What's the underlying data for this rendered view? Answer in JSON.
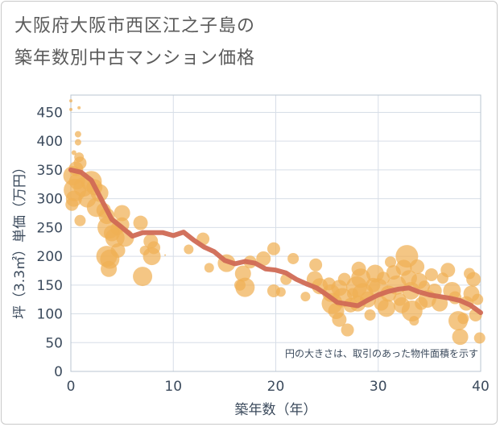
{
  "title_line1": "大阪府大阪市西区江之子島の",
  "title_line2": "築年数別中古マンション価格",
  "chart_data": {
    "type": "scatter",
    "xlabel": "築年数（年）",
    "ylabel": "坪（3.3㎡）単価（万円）",
    "xlim": [
      0,
      40
    ],
    "ylim": [
      0,
      480
    ],
    "xticks": [
      0,
      10,
      20,
      30,
      40
    ],
    "yticks": [
      0,
      50,
      100,
      150,
      200,
      250,
      300,
      350,
      400,
      450
    ],
    "grid": true,
    "annotation": "円の大きさは、取引のあった物件面積を示す",
    "colors": {
      "points": "#f0b055",
      "trend": "#d06a55",
      "grid": "#d7dee7",
      "plot_border": "#b8c4d0"
    },
    "points": [
      {
        "x": 0,
        "y": 470,
        "r": 2
      },
      {
        "x": 0,
        "y": 455,
        "r": 2
      },
      {
        "x": 0.8,
        "y": 458,
        "r": 2
      },
      {
        "x": 0.7,
        "y": 412,
        "r": 4
      },
      {
        "x": 0.7,
        "y": 398,
        "r": 4
      },
      {
        "x": 0.3,
        "y": 380,
        "r": 3
      },
      {
        "x": 0.8,
        "y": 372,
        "r": 6
      },
      {
        "x": 0.9,
        "y": 362,
        "r": 8
      },
      {
        "x": 0.5,
        "y": 352,
        "r": 9
      },
      {
        "x": 0.2,
        "y": 340,
        "r": 12
      },
      {
        "x": 0.6,
        "y": 330,
        "r": 10
      },
      {
        "x": 0.4,
        "y": 315,
        "r": 14
      },
      {
        "x": 0.3,
        "y": 300,
        "r": 10
      },
      {
        "x": 0.1,
        "y": 290,
        "r": 8
      },
      {
        "x": 0.9,
        "y": 262,
        "r": 7
      },
      {
        "x": 1.2,
        "y": 320,
        "r": 12
      },
      {
        "x": 1.6,
        "y": 300,
        "r": 11
      },
      {
        "x": 2,
        "y": 330,
        "r": 13
      },
      {
        "x": 2.3,
        "y": 320,
        "r": 10
      },
      {
        "x": 2.5,
        "y": 285,
        "r": 12
      },
      {
        "x": 2.8,
        "y": 310,
        "r": 11
      },
      {
        "x": 3.2,
        "y": 280,
        "r": 9
      },
      {
        "x": 3.5,
        "y": 270,
        "r": 10
      },
      {
        "x": 3.7,
        "y": 250,
        "r": 14
      },
      {
        "x": 3.5,
        "y": 200,
        "r": 13
      },
      {
        "x": 3.8,
        "y": 195,
        "r": 12
      },
      {
        "x": 3.7,
        "y": 178,
        "r": 10
      },
      {
        "x": 4,
        "y": 240,
        "r": 10
      },
      {
        "x": 4.3,
        "y": 232,
        "r": 12
      },
      {
        "x": 4.6,
        "y": 210,
        "r": 9
      },
      {
        "x": 4.5,
        "y": 248,
        "r": 8
      },
      {
        "x": 5,
        "y": 275,
        "r": 10
      },
      {
        "x": 5,
        "y": 255,
        "r": 9
      },
      {
        "x": 5.3,
        "y": 232,
        "r": 11
      },
      {
        "x": 6.8,
        "y": 258,
        "r": 9
      },
      {
        "x": 7,
        "y": 165,
        "r": 12
      },
      {
        "x": 7.2,
        "y": 210,
        "r": 6
      },
      {
        "x": 7.8,
        "y": 226,
        "r": 9
      },
      {
        "x": 7.9,
        "y": 200,
        "r": 11
      },
      {
        "x": 8.1,
        "y": 215,
        "r": 8
      },
      {
        "x": 9,
        "y": 240,
        "r": 1
      },
      {
        "x": 9.2,
        "y": 202,
        "r": 1
      },
      {
        "x": 11.5,
        "y": 212,
        "r": 6
      },
      {
        "x": 12.9,
        "y": 230,
        "r": 8
      },
      {
        "x": 13.5,
        "y": 180,
        "r": 6
      },
      {
        "x": 15.2,
        "y": 188,
        "r": 11
      },
      {
        "x": 16.5,
        "y": 150,
        "r": 7
      },
      {
        "x": 16.8,
        "y": 170,
        "r": 10
      },
      {
        "x": 17,
        "y": 146,
        "r": 12
      },
      {
        "x": 17.5,
        "y": 190,
        "r": 8
      },
      {
        "x": 18.8,
        "y": 196,
        "r": 9
      },
      {
        "x": 19.8,
        "y": 213,
        "r": 8
      },
      {
        "x": 19.8,
        "y": 140,
        "r": 8
      },
      {
        "x": 20.5,
        "y": 138,
        "r": 6
      },
      {
        "x": 21,
        "y": 160,
        "r": 7
      },
      {
        "x": 21.7,
        "y": 196,
        "r": 7
      },
      {
        "x": 22.9,
        "y": 130,
        "r": 6
      },
      {
        "x": 23.8,
        "y": 160,
        "r": 10
      },
      {
        "x": 23.9,
        "y": 185,
        "r": 8
      },
      {
        "x": 24.3,
        "y": 148,
        "r": 10
      },
      {
        "x": 25.2,
        "y": 152,
        "r": 8
      },
      {
        "x": 25.4,
        "y": 136,
        "r": 11
      },
      {
        "x": 25.5,
        "y": 118,
        "r": 13
      },
      {
        "x": 25.9,
        "y": 105,
        "r": 10
      },
      {
        "x": 26.2,
        "y": 90,
        "r": 9
      },
      {
        "x": 26.2,
        "y": 145,
        "r": 10
      },
      {
        "x": 26.5,
        "y": 128,
        "r": 12
      },
      {
        "x": 26.7,
        "y": 160,
        "r": 8
      },
      {
        "x": 27,
        "y": 72,
        "r": 8
      },
      {
        "x": 27.3,
        "y": 115,
        "r": 9
      },
      {
        "x": 27.5,
        "y": 135,
        "r": 7
      },
      {
        "x": 27.9,
        "y": 147,
        "r": 13
      },
      {
        "x": 28,
        "y": 118,
        "r": 10
      },
      {
        "x": 28.1,
        "y": 178,
        "r": 9
      },
      {
        "x": 28.3,
        "y": 162,
        "r": 12
      },
      {
        "x": 28.5,
        "y": 135,
        "r": 13
      },
      {
        "x": 29,
        "y": 125,
        "r": 10
      },
      {
        "x": 29.2,
        "y": 98,
        "r": 7
      },
      {
        "x": 29.5,
        "y": 150,
        "r": 9
      },
      {
        "x": 29.7,
        "y": 170,
        "r": 11
      },
      {
        "x": 30,
        "y": 145,
        "r": 12
      },
      {
        "x": 30.3,
        "y": 118,
        "r": 9
      },
      {
        "x": 30.5,
        "y": 162,
        "r": 8
      },
      {
        "x": 30.8,
        "y": 110,
        "r": 11
      },
      {
        "x": 31,
        "y": 135,
        "r": 10
      },
      {
        "x": 31.2,
        "y": 190,
        "r": 7
      },
      {
        "x": 31.5,
        "y": 172,
        "r": 9
      },
      {
        "x": 31.8,
        "y": 150,
        "r": 12
      },
      {
        "x": 32.1,
        "y": 125,
        "r": 8
      },
      {
        "x": 32.3,
        "y": 115,
        "r": 10
      },
      {
        "x": 32.5,
        "y": 180,
        "r": 10
      },
      {
        "x": 32.8,
        "y": 200,
        "r": 14
      },
      {
        "x": 33,
        "y": 162,
        "r": 10
      },
      {
        "x": 33.2,
        "y": 140,
        "r": 11
      },
      {
        "x": 33.3,
        "y": 105,
        "r": 13
      },
      {
        "x": 33.5,
        "y": 88,
        "r": 6
      },
      {
        "x": 33.8,
        "y": 182,
        "r": 9
      },
      {
        "x": 34,
        "y": 157,
        "r": 10
      },
      {
        "x": 34.2,
        "y": 118,
        "r": 8
      },
      {
        "x": 34.5,
        "y": 148,
        "r": 7
      },
      {
        "x": 34.8,
        "y": 126,
        "r": 11
      },
      {
        "x": 35.2,
        "y": 168,
        "r": 8
      },
      {
        "x": 35.5,
        "y": 140,
        "r": 9
      },
      {
        "x": 36,
        "y": 118,
        "r": 10
      },
      {
        "x": 36.3,
        "y": 162,
        "r": 7
      },
      {
        "x": 36.8,
        "y": 176,
        "r": 9
      },
      {
        "x": 37.2,
        "y": 140,
        "r": 11
      },
      {
        "x": 37.5,
        "y": 128,
        "r": 8
      },
      {
        "x": 37.8,
        "y": 88,
        "r": 12
      },
      {
        "x": 38,
        "y": 60,
        "r": 10
      },
      {
        "x": 38.3,
        "y": 92,
        "r": 7
      },
      {
        "x": 38.6,
        "y": 118,
        "r": 9
      },
      {
        "x": 38.9,
        "y": 170,
        "r": 7
      },
      {
        "x": 39.1,
        "y": 135,
        "r": 10
      },
      {
        "x": 39.3,
        "y": 160,
        "r": 9
      },
      {
        "x": 39.5,
        "y": 98,
        "r": 8
      },
      {
        "x": 39.7,
        "y": 125,
        "r": 7
      },
      {
        "x": 39.9,
        "y": 58,
        "r": 7
      }
    ],
    "trend": [
      {
        "x": 0,
        "y": 350
      },
      {
        "x": 1,
        "y": 346
      },
      {
        "x": 2,
        "y": 332
      },
      {
        "x": 3,
        "y": 298
      },
      {
        "x": 4,
        "y": 264
      },
      {
        "x": 5,
        "y": 250
      },
      {
        "x": 6,
        "y": 235
      },
      {
        "x": 7,
        "y": 241
      },
      {
        "x": 8,
        "y": 241
      },
      {
        "x": 9,
        "y": 241
      },
      {
        "x": 10,
        "y": 236
      },
      {
        "x": 11,
        "y": 242
      },
      {
        "x": 12,
        "y": 228
      },
      {
        "x": 13,
        "y": 216
      },
      {
        "x": 14,
        "y": 208
      },
      {
        "x": 15,
        "y": 193
      },
      {
        "x": 16,
        "y": 187
      },
      {
        "x": 17,
        "y": 191
      },
      {
        "x": 18,
        "y": 188
      },
      {
        "x": 19,
        "y": 178
      },
      {
        "x": 20,
        "y": 176
      },
      {
        "x": 21,
        "y": 171
      },
      {
        "x": 22,
        "y": 160
      },
      {
        "x": 23,
        "y": 152
      },
      {
        "x": 24,
        "y": 145
      },
      {
        "x": 25,
        "y": 133
      },
      {
        "x": 26,
        "y": 120
      },
      {
        "x": 27,
        "y": 117
      },
      {
        "x": 28,
        "y": 114
      },
      {
        "x": 29,
        "y": 124
      },
      {
        "x": 30,
        "y": 133
      },
      {
        "x": 31,
        "y": 139
      },
      {
        "x": 32,
        "y": 143
      },
      {
        "x": 33,
        "y": 145
      },
      {
        "x": 34,
        "y": 138
      },
      {
        "x": 35,
        "y": 133
      },
      {
        "x": 36,
        "y": 130
      },
      {
        "x": 37,
        "y": 127
      },
      {
        "x": 38,
        "y": 123
      },
      {
        "x": 39,
        "y": 115
      },
      {
        "x": 40,
        "y": 102
      }
    ]
  }
}
